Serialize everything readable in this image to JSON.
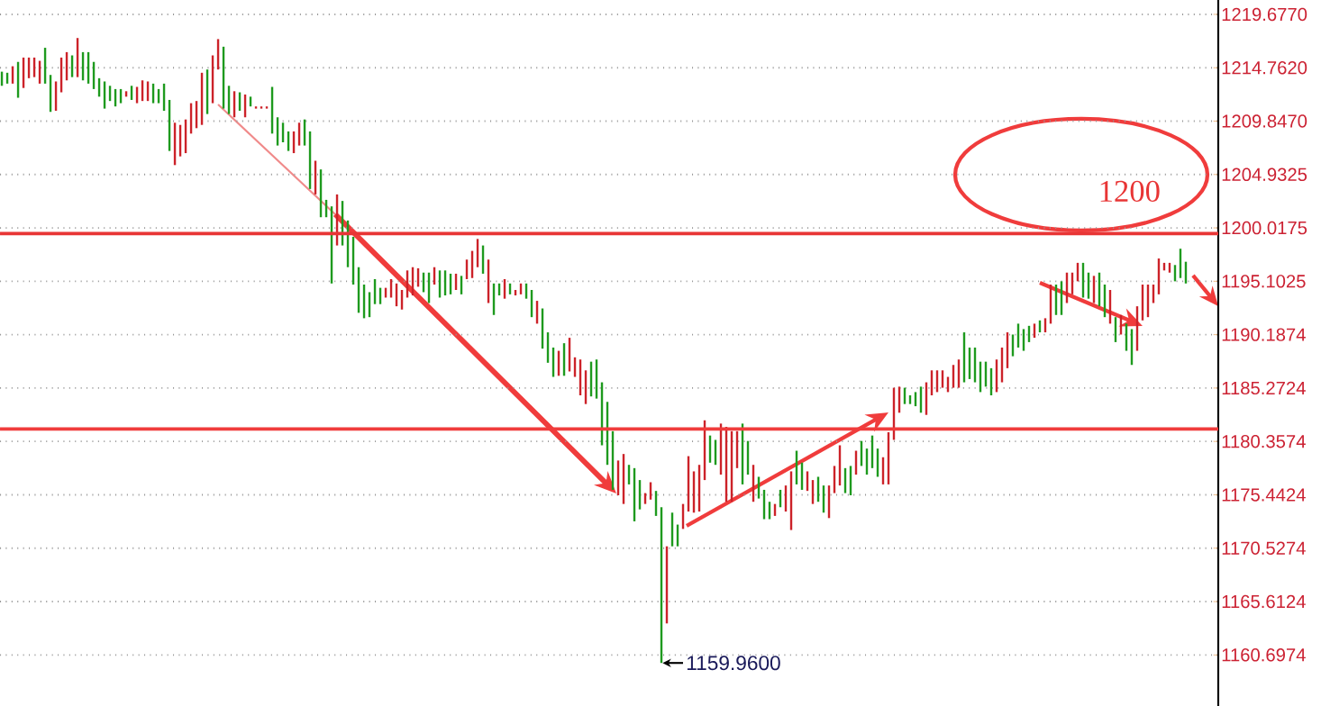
{
  "chart_data": {
    "type": "candlestick",
    "categories": [
      null,
      null,
      null,
      null,
      null,
      null,
      null,
      null,
      null,
      null,
      null,
      null,
      null,
      null,
      null,
      null,
      null,
      null,
      null,
      null,
      null,
      null,
      null,
      null,
      null,
      null,
      null,
      null,
      null,
      null,
      null,
      null,
      null,
      null,
      null,
      null,
      null,
      null,
      null,
      null,
      null,
      null,
      null,
      null,
      null,
      null,
      null,
      null,
      null,
      null,
      null,
      null,
      null,
      null,
      null,
      null,
      null,
      null,
      null,
      null,
      null,
      null,
      null,
      null,
      null,
      null,
      null,
      null,
      null,
      null,
      null,
      null,
      null,
      null,
      null,
      null,
      null,
      null,
      null,
      null,
      null,
      null,
      null,
      null,
      null,
      null,
      null,
      null,
      null,
      null,
      null,
      null,
      null,
      null,
      null,
      null,
      null,
      null,
      null,
      null,
      null,
      null,
      null,
      null,
      null,
      null,
      null,
      null,
      null,
      null,
      null,
      null,
      null,
      null,
      null,
      null,
      null,
      null,
      null,
      null,
      null,
      null,
      null,
      null,
      null,
      null,
      null,
      null,
      null,
      null,
      null,
      null,
      null,
      null,
      null,
      null,
      null,
      null,
      null,
      null,
      null,
      null,
      null,
      null,
      null,
      null,
      null,
      null,
      null,
      null,
      null,
      null,
      null,
      null,
      null,
      null,
      null,
      null,
      null,
      null,
      null,
      null,
      null,
      null,
      null,
      null,
      null,
      null,
      null,
      null,
      null,
      null,
      null,
      null,
      null,
      null,
      null,
      null,
      null,
      null,
      null,
      null,
      null,
      null,
      null,
      null,
      null,
      null,
      null,
      null,
      null,
      null,
      null,
      null,
      null,
      null,
      null,
      null,
      null,
      null,
      null,
      null,
      null,
      null,
      null,
      null,
      null,
      null,
      null,
      null,
      null,
      null,
      null,
      null,
      null,
      null,
      null,
      null,
      null,
      null
    ],
    "ohlc": [
      [
        1214.4,
        1214.4,
        1213.1,
        1213.1
      ],
      [
        1214.3,
        1214.3,
        1213.3,
        1213.3
      ],
      [
        1213.3,
        1214.9,
        1213.3,
        1214.9
      ],
      [
        1215.3,
        1215.3,
        1212.0,
        1212.0
      ],
      [
        1212.9,
        1215.7,
        1212.9,
        1215.7
      ],
      [
        1213.8,
        1215.7,
        1213.8,
        1215.7
      ],
      [
        1213.9,
        1215.7,
        1213.9,
        1215.7
      ],
      [
        1213.3,
        1215.4,
        1213.3,
        1215.4
      ],
      [
        1216.6,
        1216.6,
        1213.3,
        1213.3
      ],
      [
        1214.1,
        1214.1,
        1210.7,
        1210.7
      ],
      [
        1210.8,
        1213.5,
        1210.8,
        1213.5
      ],
      [
        1212.5,
        1215.7,
        1212.5,
        1215.7
      ],
      [
        1213.6,
        1216.2,
        1213.6,
        1216.2
      ],
      [
        1215.9,
        1215.9,
        1213.9,
        1213.9
      ],
      [
        1213.9,
        1217.5,
        1213.9,
        1217.5
      ],
      [
        1216.2,
        1216.2,
        1213.6,
        1213.6
      ],
      [
        1216.2,
        1216.2,
        1213.3,
        1213.3
      ],
      [
        1215.3,
        1215.3,
        1212.8,
        1212.8
      ],
      [
        1213.8,
        1213.8,
        1212.1,
        1212.1
      ],
      [
        1213.5,
        1213.5,
        1211.0,
        1211.0
      ],
      [
        1213.1,
        1213.1,
        1211.7,
        1211.7
      ],
      [
        1212.8,
        1212.8,
        1211.2,
        1211.2
      ],
      [
        1212.8,
        1212.8,
        1211.5,
        1211.5
      ],
      [
        1212.1,
        1212.6,
        1212.1,
        1212.6
      ],
      [
        1213.1,
        1213.1,
        1211.8,
        1211.8
      ],
      [
        1211.5,
        1213.0,
        1211.5,
        1213.0
      ],
      [
        1211.7,
        1213.6,
        1211.7,
        1213.6
      ],
      [
        1211.7,
        1213.5,
        1211.7,
        1213.5
      ],
      [
        1213.3,
        1213.3,
        1211.5,
        1211.5
      ],
      [
        1212.8,
        1212.8,
        1211.5,
        1211.5
      ],
      [
        1213.3,
        1213.3,
        1210.8,
        1210.8
      ],
      [
        1211.8,
        1211.8,
        1207.1,
        1207.1
      ],
      [
        1205.8,
        1209.7,
        1205.8,
        1209.7
      ],
      [
        1206.6,
        1209.5,
        1206.6,
        1209.5
      ],
      [
        1206.9,
        1210.0,
        1206.9,
        1210.0
      ],
      [
        1208.7,
        1211.5,
        1208.7,
        1211.5
      ],
      [
        1209.2,
        1211.7,
        1209.2,
        1211.7
      ],
      [
        1209.5,
        1214.3,
        1209.5,
        1214.3
      ],
      [
        1214.6,
        1214.6,
        1210.5,
        1210.5
      ],
      [
        1211.5,
        1215.9,
        1211.5,
        1215.9
      ],
      [
        1214.6,
        1217.4,
        1214.6,
        1217.4
      ],
      [
        1216.7,
        1216.7,
        1211.0,
        1211.0
      ],
      [
        1213.1,
        1213.1,
        1210.5,
        1210.5
      ],
      [
        1210.2,
        1212.6,
        1210.2,
        1212.6
      ],
      [
        1212.5,
        1212.5,
        1210.8,
        1210.8
      ],
      [
        1210.2,
        1212.3,
        1210.2,
        1212.3
      ],
      [
        1212.1,
        1212.1,
        1211.2,
        1211.2
      ],
      [
        1211.0,
        1211.2,
        1211.0,
        1211.2
      ],
      [
        1211.0,
        1211.2,
        1211.0,
        1211.2
      ],
      [
        1211.0,
        1211.2,
        1211.0,
        1211.2
      ],
      [
        1213.0,
        1213.0,
        1208.7,
        1208.7
      ],
      [
        1210.2,
        1210.2,
        1207.6,
        1207.6
      ],
      [
        1209.7,
        1209.7,
        1207.9,
        1207.9
      ],
      [
        1208.9,
        1208.9,
        1207.1,
        1207.1
      ],
      [
        1206.9,
        1208.9,
        1206.9,
        1208.9
      ],
      [
        1207.6,
        1209.7,
        1207.6,
        1209.7
      ],
      [
        1210.0,
        1210.0,
        1207.6,
        1207.6
      ],
      [
        1208.9,
        1208.9,
        1203.6,
        1203.6
      ],
      [
        1203.1,
        1206.2,
        1203.1,
        1206.2
      ],
      [
        1205.4,
        1205.4,
        1201.0,
        1201.0
      ],
      [
        1202.6,
        1202.6,
        1201.0,
        1201.0
      ],
      [
        1202.0,
        1202.0,
        1194.9,
        1194.9
      ],
      [
        1198.4,
        1203.1,
        1198.4,
        1203.1
      ],
      [
        1202.5,
        1202.5,
        1198.4,
        1198.4
      ],
      [
        1200.7,
        1200.7,
        1196.4,
        1196.4
      ],
      [
        1199.2,
        1199.2,
        1194.8,
        1194.8
      ],
      [
        1196.4,
        1196.4,
        1192.2,
        1192.2
      ],
      [
        1194.8,
        1194.8,
        1191.7,
        1191.7
      ],
      [
        1194.1,
        1194.1,
        1191.8,
        1191.8
      ],
      [
        1195.3,
        1195.3,
        1193.0,
        1193.0
      ],
      [
        1194.5,
        1194.5,
        1193.0,
        1193.0
      ],
      [
        1193.6,
        1194.5,
        1193.6,
        1194.5
      ],
      [
        1193.6,
        1195.3,
        1193.6,
        1195.3
      ],
      [
        1192.8,
        1194.9,
        1192.8,
        1194.9
      ],
      [
        1192.5,
        1194.3,
        1192.5,
        1194.3
      ],
      [
        1193.6,
        1196.1,
        1193.6,
        1196.1
      ],
      [
        1193.8,
        1196.4,
        1193.8,
        1196.4
      ],
      [
        1194.6,
        1196.3,
        1194.6,
        1196.3
      ],
      [
        1195.9,
        1195.9,
        1194.1,
        1194.1
      ],
      [
        1195.9,
        1195.9,
        1193.1,
        1193.1
      ],
      [
        1194.8,
        1196.4,
        1194.8,
        1196.4
      ],
      [
        1196.1,
        1196.1,
        1193.6,
        1193.6
      ],
      [
        1196.1,
        1196.1,
        1193.8,
        1193.8
      ],
      [
        1195.8,
        1195.8,
        1193.9,
        1193.9
      ],
      [
        1194.3,
        1195.8,
        1194.3,
        1195.8
      ],
      [
        1195.6,
        1195.6,
        1193.9,
        1193.9
      ],
      [
        1195.3,
        1197.1,
        1195.3,
        1197.1
      ],
      [
        1195.4,
        1197.9,
        1195.4,
        1197.9
      ],
      [
        1196.4,
        1199.0,
        1196.4,
        1199.0
      ],
      [
        1198.4,
        1198.4,
        1195.8,
        1195.8
      ],
      [
        1193.1,
        1197.1,
        1193.1,
        1197.1
      ],
      [
        1194.9,
        1194.9,
        1192.0,
        1192.0
      ],
      [
        1194.9,
        1194.9,
        1193.8,
        1193.8
      ],
      [
        1193.5,
        1195.3,
        1193.5,
        1195.3
      ],
      [
        1194.9,
        1194.9,
        1193.9,
        1193.9
      ],
      [
        1193.8,
        1194.3,
        1193.8,
        1194.3
      ],
      [
        1193.9,
        1194.9,
        1193.9,
        1194.9
      ],
      [
        1194.9,
        1194.9,
        1193.5,
        1193.5
      ],
      [
        1194.3,
        1194.3,
        1191.8,
        1191.8
      ],
      [
        1191.2,
        1193.3,
        1191.2,
        1193.3
      ],
      [
        1192.6,
        1192.6,
        1188.9,
        1188.9
      ],
      [
        1190.4,
        1190.4,
        1187.6,
        1187.6
      ],
      [
        1189.0,
        1189.0,
        1186.3,
        1186.3
      ],
      [
        1186.4,
        1188.7,
        1186.4,
        1188.7
      ],
      [
        1189.4,
        1189.4,
        1186.4,
        1186.4
      ],
      [
        1186.8,
        1189.9,
        1186.8,
        1189.9
      ],
      [
        1186.3,
        1188.1,
        1186.3,
        1188.1
      ],
      [
        1184.6,
        1187.9,
        1184.6,
        1187.9
      ],
      [
        1183.8,
        1186.9,
        1183.8,
        1186.9
      ],
      [
        1187.7,
        1187.7,
        1184.5,
        1184.5
      ],
      [
        1187.9,
        1187.9,
        1184.3,
        1184.3
      ],
      [
        1185.8,
        1185.8,
        1180.0,
        1180.0
      ],
      [
        1184.0,
        1184.0,
        1178.2,
        1178.2
      ],
      [
        1181.3,
        1181.3,
        1175.9,
        1175.9
      ],
      [
        1175.4,
        1178.6,
        1175.4,
        1178.6
      ],
      [
        1174.6,
        1179.2,
        1174.6,
        1179.2
      ],
      [
        1178.2,
        1178.2,
        1176.4,
        1176.4
      ],
      [
        1177.9,
        1177.9,
        1173.0,
        1173.0
      ],
      [
        1176.8,
        1176.8,
        1174.1,
        1174.1
      ],
      [
        1174.6,
        1175.6,
        1174.6,
        1175.6
      ],
      [
        1175.0,
        1176.6,
        1175.0,
        1176.6
      ],
      [
        1175.8,
        1175.8,
        1173.5,
        1173.5
      ],
      [
        1174.3,
        1174.3,
        1159.96,
        1159.96
      ],
      [
        1163.6,
        1170.7,
        1163.6,
        1170.7
      ],
      [
        1173.8,
        1173.8,
        1170.7,
        1170.7
      ],
      [
        1172.7,
        1172.7,
        1170.7,
        1170.7
      ],
      [
        1172.3,
        1174.6,
        1172.3,
        1174.6
      ],
      [
        1173.9,
        1179.0,
        1173.9,
        1179.0
      ],
      [
        1173.8,
        1177.6,
        1173.8,
        1177.6
      ],
      [
        1173.9,
        1178.2,
        1173.9,
        1178.2
      ],
      [
        1176.8,
        1182.3,
        1176.8,
        1182.3
      ],
      [
        1180.9,
        1180.9,
        1178.4,
        1178.4
      ],
      [
        1180.5,
        1180.5,
        1178.2,
        1178.2
      ],
      [
        1177.3,
        1182.0,
        1177.3,
        1182.0
      ],
      [
        1174.8,
        1181.7,
        1174.8,
        1181.7
      ],
      [
        1174.8,
        1181.3,
        1174.8,
        1181.3
      ],
      [
        1177.9,
        1181.3,
        1177.9,
        1181.3
      ],
      [
        1182.0,
        1182.0,
        1176.4,
        1176.4
      ],
      [
        1180.4,
        1180.4,
        1177.3,
        1177.3
      ],
      [
        1174.8,
        1178.2,
        1174.8,
        1178.2
      ],
      [
        1177.1,
        1177.1,
        1175.1,
        1175.1
      ],
      [
        1175.9,
        1175.9,
        1173.2,
        1173.2
      ],
      [
        1174.8,
        1174.8,
        1173.2,
        1173.2
      ],
      [
        1173.5,
        1174.6,
        1173.5,
        1174.6
      ],
      [
        1175.9,
        1175.9,
        1174.3,
        1174.3
      ],
      [
        1173.9,
        1176.3,
        1173.9,
        1176.3
      ],
      [
        1172.2,
        1177.6,
        1172.2,
        1177.6
      ],
      [
        1179.5,
        1179.5,
        1176.4,
        1176.4
      ],
      [
        1178.4,
        1178.4,
        1175.9,
        1175.9
      ],
      [
        1175.8,
        1177.6,
        1175.8,
        1177.6
      ],
      [
        1174.6,
        1176.8,
        1174.6,
        1176.8
      ],
      [
        1177.1,
        1177.1,
        1174.8,
        1174.8
      ],
      [
        1176.3,
        1176.3,
        1173.8,
        1173.8
      ],
      [
        1173.3,
        1176.3,
        1173.3,
        1176.3
      ],
      [
        1175.6,
        1178.1,
        1175.6,
        1178.1
      ],
      [
        1176.3,
        1180.0,
        1176.3,
        1180.0
      ],
      [
        1177.9,
        1177.9,
        1175.6,
        1175.6
      ],
      [
        1178.1,
        1178.1,
        1175.4,
        1175.4
      ],
      [
        1177.3,
        1179.5,
        1177.3,
        1179.5
      ],
      [
        1180.4,
        1180.4,
        1178.1,
        1178.1
      ],
      [
        1179.7,
        1179.7,
        1177.3,
        1177.3
      ],
      [
        1180.9,
        1180.9,
        1177.9,
        1177.9
      ],
      [
        1179.7,
        1179.7,
        1177.1,
        1177.1
      ],
      [
        1176.4,
        1178.9,
        1176.4,
        1178.9
      ],
      [
        1176.4,
        1181.2,
        1176.4,
        1181.2
      ],
      [
        1180.5,
        1185.3,
        1180.5,
        1185.3
      ],
      [
        1183.0,
        1185.4,
        1183.0,
        1185.4
      ],
      [
        1185.3,
        1185.3,
        1183.8,
        1183.8
      ],
      [
        1184.6,
        1184.6,
        1183.8,
        1183.8
      ],
      [
        1184.9,
        1184.9,
        1183.6,
        1183.6
      ],
      [
        1185.4,
        1185.4,
        1183.0,
        1183.0
      ],
      [
        1182.8,
        1185.8,
        1182.8,
        1185.8
      ],
      [
        1184.6,
        1186.9,
        1184.6,
        1186.9
      ],
      [
        1184.9,
        1186.9,
        1184.9,
        1186.9
      ],
      [
        1185.3,
        1186.9,
        1185.3,
        1186.9
      ],
      [
        1184.9,
        1186.3,
        1184.9,
        1186.3
      ],
      [
        1185.3,
        1187.4,
        1185.3,
        1187.4
      ],
      [
        1185.3,
        1187.9,
        1185.3,
        1187.9
      ],
      [
        1190.4,
        1190.4,
        1185.8,
        1185.8
      ],
      [
        1189.0,
        1189.0,
        1186.1,
        1186.1
      ],
      [
        1189.0,
        1189.0,
        1185.8,
        1185.8
      ],
      [
        1187.7,
        1187.7,
        1184.9,
        1184.9
      ],
      [
        1187.7,
        1187.7,
        1185.4,
        1185.4
      ],
      [
        1187.1,
        1187.1,
        1184.6,
        1184.6
      ],
      [
        1184.9,
        1187.9,
        1184.9,
        1187.9
      ],
      [
        1185.8,
        1189.0,
        1185.8,
        1189.0
      ],
      [
        1187.1,
        1190.4,
        1187.1,
        1190.4
      ],
      [
        1190.2,
        1190.2,
        1188.2,
        1188.2
      ],
      [
        1191.2,
        1191.2,
        1189.0,
        1189.0
      ],
      [
        1190.7,
        1190.7,
        1188.7,
        1188.7
      ],
      [
        1191.0,
        1191.0,
        1189.5,
        1189.5
      ],
      [
        1189.9,
        1191.2,
        1189.9,
        1191.2
      ],
      [
        1191.5,
        1191.5,
        1190.4,
        1190.4
      ],
      [
        1190.4,
        1191.7,
        1190.4,
        1191.7
      ],
      [
        1191.2,
        1194.8,
        1191.2,
        1194.8
      ],
      [
        1194.8,
        1194.8,
        1192.0,
        1192.0
      ],
      [
        1195.1,
        1195.1,
        1192.0,
        1192.0
      ],
      [
        1193.1,
        1195.9,
        1193.1,
        1195.9
      ],
      [
        1193.9,
        1195.9,
        1193.9,
        1195.9
      ],
      [
        1195.1,
        1196.8,
        1195.1,
        1196.8
      ],
      [
        1196.8,
        1196.8,
        1193.6,
        1193.6
      ],
      [
        1195.9,
        1195.9,
        1193.5,
        1193.5
      ],
      [
        1193.1,
        1195.6,
        1193.1,
        1195.6
      ],
      [
        1195.9,
        1195.9,
        1192.8,
        1192.8
      ],
      [
        1194.8,
        1194.8,
        1191.8,
        1191.8
      ],
      [
        1191.2,
        1194.3,
        1191.2,
        1194.3
      ],
      [
        1191.8,
        1191.8,
        1189.5,
        1189.5
      ],
      [
        1190.2,
        1192.0,
        1190.2,
        1192.0
      ],
      [
        1191.2,
        1191.2,
        1188.7,
        1188.7
      ],
      [
        1190.7,
        1190.7,
        1187.4,
        1187.4
      ],
      [
        1188.7,
        1192.8,
        1188.7,
        1192.8
      ],
      [
        1191.5,
        1194.8,
        1191.5,
        1194.8
      ],
      [
        1191.8,
        1194.8,
        1191.8,
        1194.8
      ],
      [
        1193.1,
        1194.8,
        1193.1,
        1194.8
      ],
      [
        1193.9,
        1197.2,
        1193.9,
        1197.2
      ],
      [
        1196.1,
        1196.8,
        1196.1,
        1196.8
      ],
      [
        1195.9,
        1196.8,
        1195.9,
        1196.8
      ],
      [
        1196.6,
        1196.6,
        1195.1,
        1195.1
      ],
      [
        1198.1,
        1198.1,
        1195.4,
        1195.4
      ],
      [
        1196.9,
        1196.9,
        1194.9,
        1194.9
      ]
    ],
    "colors": [
      "#1e9a1e",
      "#1e9a1e",
      "#cc2229",
      "#1e9a1e",
      "#cc2229",
      "#cc2229",
      "#cc2229",
      "#cc2229",
      "#1e9a1e",
      "#1e9a1e",
      "#cc2229",
      "#cc2229",
      "#cc2229",
      "#1e9a1e",
      "#cc2229",
      "#1e9a1e",
      "#1e9a1e",
      "#1e9a1e",
      "#1e9a1e",
      "#1e9a1e",
      "#1e9a1e",
      "#1e9a1e",
      "#1e9a1e",
      "#cc2229",
      "#1e9a1e",
      "#cc2229",
      "#cc2229",
      "#cc2229",
      "#1e9a1e",
      "#1e9a1e",
      "#1e9a1e",
      "#1e9a1e",
      "#cc2229",
      "#cc2229",
      "#cc2229",
      "#cc2229",
      "#cc2229",
      "#cc2229",
      "#1e9a1e",
      "#cc2229",
      "#cc2229",
      "#1e9a1e",
      "#1e9a1e",
      "#cc2229",
      "#1e9a1e",
      "#cc2229",
      "#1e9a1e",
      "#cc2229",
      "#cc2229",
      "#cc2229",
      "#1e9a1e",
      "#1e9a1e",
      "#1e9a1e",
      "#1e9a1e",
      "#cc2229",
      "#cc2229",
      "#1e9a1e",
      "#1e9a1e",
      "#cc2229",
      "#1e9a1e",
      "#1e9a1e",
      "#1e9a1e",
      "#cc2229",
      "#1e9a1e",
      "#1e9a1e",
      "#1e9a1e",
      "#1e9a1e",
      "#1e9a1e",
      "#1e9a1e",
      "#1e9a1e",
      "#1e9a1e",
      "#cc2229",
      "#cc2229",
      "#cc2229",
      "#cc2229",
      "#cc2229",
      "#cc2229",
      "#cc2229",
      "#1e9a1e",
      "#1e9a1e",
      "#cc2229",
      "#1e9a1e",
      "#1e9a1e",
      "#1e9a1e",
      "#cc2229",
      "#1e9a1e",
      "#cc2229",
      "#cc2229",
      "#cc2229",
      "#1e9a1e",
      "#cc2229",
      "#1e9a1e",
      "#1e9a1e",
      "#cc2229",
      "#1e9a1e",
      "#cc2229",
      "#cc2229",
      "#1e9a1e",
      "#1e9a1e",
      "#cc2229",
      "#1e9a1e",
      "#1e9a1e",
      "#1e9a1e",
      "#cc2229",
      "#1e9a1e",
      "#cc2229",
      "#cc2229",
      "#cc2229",
      "#cc2229",
      "#1e9a1e",
      "#1e9a1e",
      "#1e9a1e",
      "#1e9a1e",
      "#1e9a1e",
      "#cc2229",
      "#cc2229",
      "#1e9a1e",
      "#1e9a1e",
      "#1e9a1e",
      "#cc2229",
      "#cc2229",
      "#1e9a1e",
      "#1e9a1e",
      "#cc2229",
      "#1e9a1e",
      "#1e9a1e",
      "#cc2229",
      "#cc2229",
      "#cc2229",
      "#cc2229",
      "#cc2229",
      "#1e9a1e",
      "#1e9a1e",
      "#cc2229",
      "#cc2229",
      "#cc2229",
      "#cc2229",
      "#1e9a1e",
      "#1e9a1e",
      "#cc2229",
      "#1e9a1e",
      "#1e9a1e",
      "#1e9a1e",
      "#cc2229",
      "#1e9a1e",
      "#cc2229",
      "#cc2229",
      "#1e9a1e",
      "#1e9a1e",
      "#cc2229",
      "#cc2229",
      "#1e9a1e",
      "#1e9a1e",
      "#cc2229",
      "#cc2229",
      "#cc2229",
      "#1e9a1e",
      "#1e9a1e",
      "#cc2229",
      "#1e9a1e",
      "#1e9a1e",
      "#1e9a1e",
      "#1e9a1e",
      "#cc2229",
      "#cc2229",
      "#cc2229",
      "#cc2229",
      "#1e9a1e",
      "#1e9a1e",
      "#1e9a1e",
      "#1e9a1e",
      "#cc2229",
      "#cc2229",
      "#cc2229",
      "#cc2229",
      "#cc2229",
      "#cc2229",
      "#cc2229",
      "#1e9a1e",
      "#1e9a1e",
      "#1e9a1e",
      "#1e9a1e",
      "#1e9a1e",
      "#1e9a1e",
      "#cc2229",
      "#cc2229",
      "#cc2229",
      "#1e9a1e",
      "#1e9a1e",
      "#1e9a1e",
      "#1e9a1e",
      "#cc2229",
      "#1e9a1e",
      "#cc2229",
      "#cc2229",
      "#1e9a1e",
      "#1e9a1e",
      "#cc2229",
      "#cc2229",
      "#cc2229",
      "#1e9a1e",
      "#1e9a1e",
      "#cc2229",
      "#1e9a1e",
      "#1e9a1e",
      "#cc2229",
      "#1e9a1e",
      "#cc2229",
      "#1e9a1e",
      "#1e9a1e",
      "#cc2229",
      "#cc2229",
      "#cc2229",
      "#cc2229",
      "#cc2229",
      "#cc2229",
      "#cc2229",
      "#1e9a1e",
      "#1e9a1e",
      "#1e9a1e"
    ],
    "ylim": [
      1156.0,
      1221.0
    ],
    "yticks": [
      {
        "value": 1160.6974,
        "label": "1160.6974"
      },
      {
        "value": 1165.6124,
        "label": "1165.6124"
      },
      {
        "value": 1170.5274,
        "label": "1170.5274"
      },
      {
        "value": 1175.4424,
        "label": "1175.4424"
      },
      {
        "value": 1180.3574,
        "label": "1180.3574"
      },
      {
        "value": 1185.2724,
        "label": "1185.2724"
      },
      {
        "value": 1190.1874,
        "label": "1190.1874"
      },
      {
        "value": 1195.1025,
        "label": "1195.1025"
      },
      {
        "value": 1200.0175,
        "label": "1200.0175"
      },
      {
        "value": 1204.9325,
        "label": "1204.9325"
      },
      {
        "value": 1209.847,
        "label": "1209.8470"
      },
      {
        "value": 1214.762,
        "label": "1214.7620"
      },
      {
        "value": 1219.677,
        "label": "1219.6770"
      }
    ],
    "grid": "y",
    "ref_lines": [
      {
        "axis": "y",
        "value": 1199.5,
        "label": "1200",
        "color": "#e83535"
      },
      {
        "axis": "y",
        "value": 1181.5,
        "color": "#f03c3c"
      }
    ],
    "annotations": [
      "1159.9600"
    ]
  }
}
